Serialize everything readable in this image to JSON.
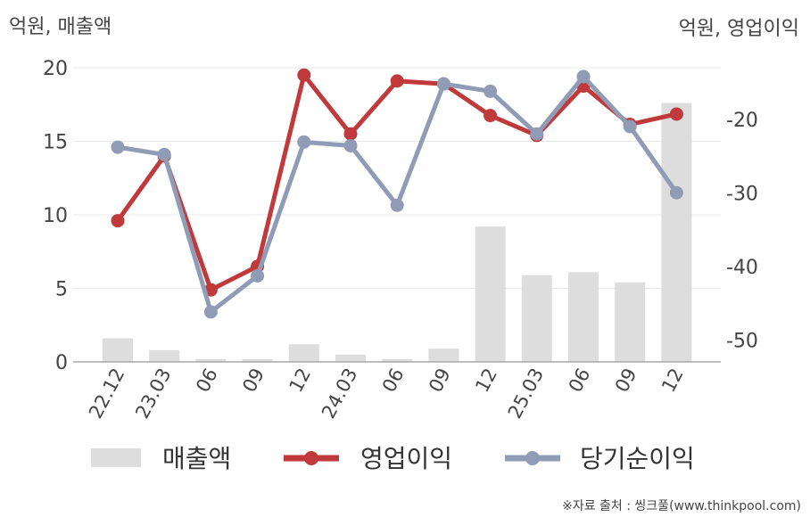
{
  "chart_data": {
    "type": "bar+line",
    "left_axis_label": "억원, 매출액",
    "right_axis_label": "억원, 영업이익",
    "categories": [
      "22.12",
      "23.03",
      "06",
      "09",
      "12",
      "24.03",
      "06",
      "09",
      "12",
      "25.03",
      "06",
      "09",
      "12"
    ],
    "left_ylim": [
      0,
      20
    ],
    "left_ticks": [
      "0",
      "5",
      "10",
      "15",
      "20"
    ],
    "right_ylim": [
      -53,
      -13
    ],
    "right_ticks": [
      "-50",
      "-40",
      "-30",
      "-20"
    ],
    "grid": true,
    "legend_position": "bottom",
    "series": [
      {
        "name": "매출액",
        "kind": "bar",
        "axis": "left",
        "color": "#dddddd",
        "values": [
          1.6,
          0.8,
          0.2,
          0.2,
          1.2,
          0.5,
          0.2,
          0.9,
          9.2,
          5.9,
          6.1,
          5.4,
          17.6
        ]
      },
      {
        "name": "영업이익",
        "kind": "line",
        "axis": "right",
        "color": "#c0393b",
        "values": [
          -33.8,
          -25.0,
          -43.2,
          -40.0,
          -14.0,
          -22.0,
          -14.8,
          -15.2,
          -19.5,
          -22.2,
          -15.5,
          -20.7,
          -19.3
        ]
      },
      {
        "name": "당기순이익",
        "kind": "line",
        "axis": "right",
        "color": "#909cb5",
        "values": [
          -23.8,
          -24.8,
          -46.2,
          -41.3,
          -23.1,
          -23.6,
          -31.7,
          -15.2,
          -16.2,
          -22.0,
          -14.2,
          -21.0,
          -30.0
        ]
      }
    ]
  },
  "source_text": "※자료 출처 : 씽크풀(www.thinkpool.com)"
}
